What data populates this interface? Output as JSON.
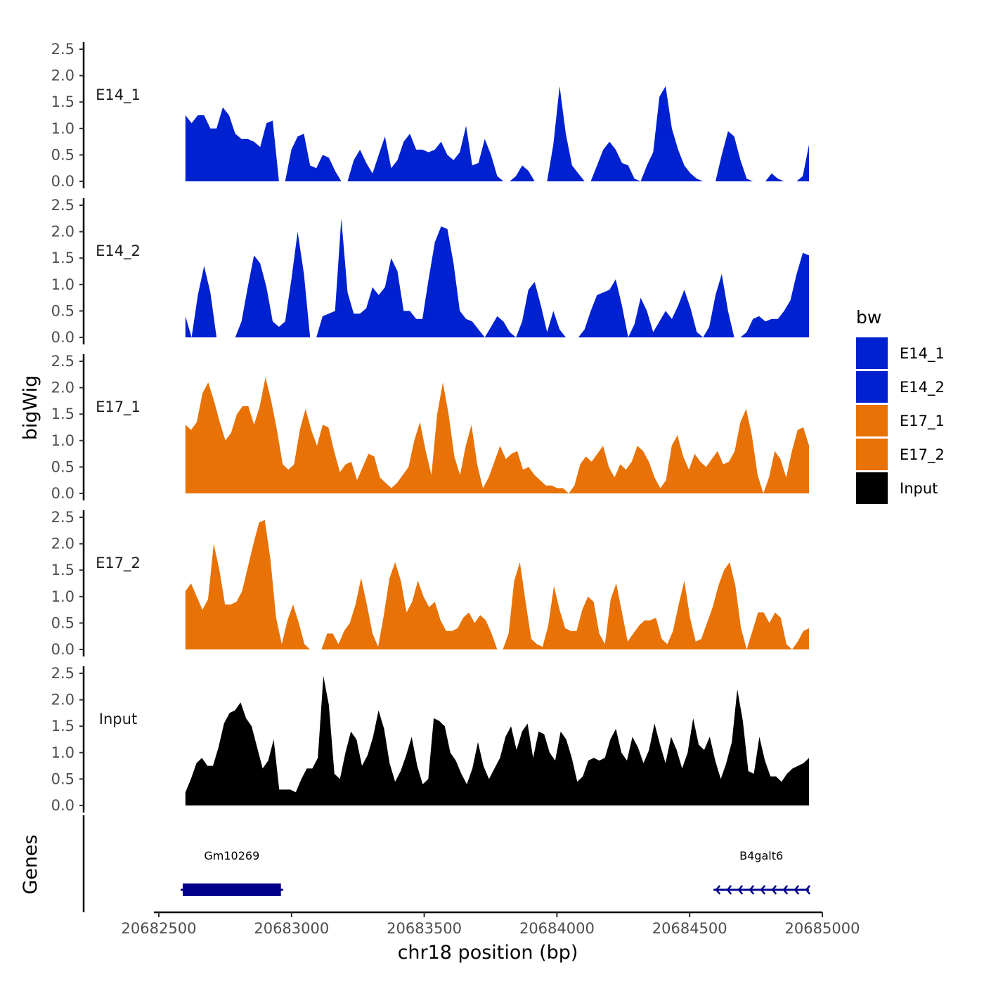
{
  "colors": {
    "E14": "#0021CF",
    "E17": "#E87206",
    "Input": "#000000",
    "gene": "#00008B"
  },
  "chart_data": {
    "type": "area",
    "ylabel": "bigWig",
    "xlabel": "chr18 position (bp)",
    "genes_label": "Genes",
    "ylim": [
      0,
      2.6
    ],
    "y_ticks": [
      "0.0",
      "0.5",
      "1.0",
      "1.5",
      "2.0",
      "2.5"
    ],
    "x_ticks": [
      "20682500",
      "20683000",
      "20683500",
      "20684000",
      "20684500",
      "20685000"
    ],
    "xlim": [
      20682490,
      20685080
    ],
    "data_range": [
      20682600,
      20684950
    ],
    "legend": {
      "title": "bw",
      "entries": [
        {
          "label": "E14_1",
          "color": "#0021CF"
        },
        {
          "label": "E14_2",
          "color": "#0021CF"
        },
        {
          "label": "E17_1",
          "color": "#E87206"
        },
        {
          "label": "E17_2",
          "color": "#E87206"
        },
        {
          "label": "Input",
          "color": "#000000"
        }
      ]
    },
    "series": [
      {
        "name": "E14_1",
        "color": "#0021CF",
        "values": [
          1.25,
          1.1,
          1.25,
          1.25,
          1.0,
          1.0,
          1.4,
          1.25,
          0.9,
          0.8,
          0.8,
          0.75,
          0.65,
          1.1,
          1.15,
          0,
          0,
          0.6,
          0.85,
          0.9,
          0.3,
          0.25,
          0.5,
          0.45,
          0.2,
          0,
          0,
          0.4,
          0.6,
          0.35,
          0.15,
          0.5,
          0.85,
          0.25,
          0.4,
          0.75,
          0.9,
          0.6,
          0.6,
          0.55,
          0.6,
          0.75,
          0.5,
          0.4,
          0.55,
          1.05,
          0.3,
          0.35,
          0.8,
          0.5,
          0.1,
          0,
          0,
          0.1,
          0.3,
          0.2,
          0,
          0,
          0,
          0.7,
          1.8,
          0.9,
          0.3,
          0.15,
          0,
          0,
          0.3,
          0.6,
          0.75,
          0.6,
          0.35,
          0.3,
          0.05,
          0,
          0.3,
          0.55,
          1.6,
          1.8,
          1.0,
          0.6,
          0.3,
          0.15,
          0.05,
          0,
          0,
          0,
          0.5,
          0.95,
          0.85,
          0.4,
          0.05,
          0,
          0,
          0,
          0.15,
          0.05,
          0,
          0,
          0,
          0.1,
          0.7
        ]
      },
      {
        "name": "E14_2",
        "color": "#0021CF",
        "values": [
          0.4,
          0,
          0.8,
          1.35,
          0.85,
          0,
          0,
          0,
          0,
          0.3,
          0.95,
          1.55,
          1.4,
          0.95,
          0.3,
          0.2,
          0.3,
          1.1,
          2.0,
          1.2,
          0,
          0,
          0.4,
          0.45,
          0.5,
          2.25,
          0.85,
          0.45,
          0.45,
          0.55,
          0.95,
          0.8,
          0.95,
          1.5,
          1.25,
          0.5,
          0.5,
          0.35,
          0.35,
          1.1,
          1.8,
          2.1,
          2.05,
          1.4,
          0.5,
          0.35,
          0.3,
          0.15,
          0,
          0.2,
          0.4,
          0.3,
          0.1,
          0,
          0.3,
          0.9,
          1.05,
          0.6,
          0.1,
          0.5,
          0.15,
          0,
          0,
          0,
          0.15,
          0.5,
          0.8,
          0.85,
          0.9,
          1.1,
          0.6,
          0,
          0.25,
          0.75,
          0.5,
          0.1,
          0.3,
          0.5,
          0.35,
          0.6,
          0.9,
          0.55,
          0.1,
          0,
          0.2,
          0.8,
          1.2,
          0.5,
          0,
          0,
          0.1,
          0.35,
          0.4,
          0.3,
          0.35,
          0.35,
          0.5,
          0.7,
          1.2,
          1.6,
          1.55
        ]
      },
      {
        "name": "E17_1",
        "color": "#E87206",
        "values": [
          1.3,
          1.2,
          1.35,
          1.9,
          2.1,
          1.75,
          1.35,
          1.0,
          1.15,
          1.5,
          1.65,
          1.65,
          1.3,
          1.65,
          2.2,
          1.75,
          1.2,
          0.55,
          0.45,
          0.55,
          1.2,
          1.6,
          1.2,
          0.9,
          1.3,
          1.25,
          0.8,
          0.4,
          0.55,
          0.6,
          0.25,
          0.5,
          0.75,
          0.7,
          0.3,
          0.2,
          0.1,
          0.2,
          0.35,
          0.5,
          1.0,
          1.35,
          0.8,
          0.35,
          1.5,
          2.1,
          1.5,
          0.7,
          0.35,
          0.9,
          1.3,
          0.55,
          0.1,
          0.3,
          0.6,
          0.9,
          0.65,
          0.75,
          0.8,
          0.45,
          0.5,
          0.35,
          0.25,
          0.15,
          0.15,
          0.1,
          0.1,
          0,
          0.15,
          0.55,
          0.7,
          0.6,
          0.75,
          0.9,
          0.5,
          0.3,
          0.55,
          0.45,
          0.6,
          0.9,
          0.8,
          0.6,
          0.3,
          0.1,
          0.25,
          0.9,
          1.1,
          0.7,
          0.45,
          0.75,
          0.6,
          0.5,
          0.65,
          0.8,
          0.55,
          0.6,
          0.8,
          1.35,
          1.6,
          1.1,
          0.35,
          0,
          0.3,
          0.8,
          0.65,
          0.3,
          0.8,
          1.2,
          1.25,
          0.9
        ]
      },
      {
        "name": "E17_2",
        "color": "#E87206",
        "values": [
          1.1,
          1.25,
          1.0,
          0.75,
          0.95,
          2.0,
          1.5,
          0.85,
          0.85,
          0.9,
          1.1,
          1.55,
          2.0,
          2.4,
          2.45,
          1.7,
          0.6,
          0.1,
          0.55,
          0.85,
          0.5,
          0.1,
          0,
          0,
          0,
          0.3,
          0.3,
          0.1,
          0.35,
          0.5,
          0.85,
          1.35,
          0.85,
          0.3,
          0.05,
          0.65,
          1.35,
          1.65,
          1.3,
          0.7,
          0.9,
          1.3,
          1.0,
          0.8,
          0.9,
          0.55,
          0.35,
          0.35,
          0.4,
          0.6,
          0.7,
          0.5,
          0.65,
          0.55,
          0.3,
          0,
          0,
          0.3,
          1.3,
          1.65,
          0.9,
          0.2,
          0.1,
          0.05,
          0.45,
          1.2,
          0.75,
          0.4,
          0.35,
          0.35,
          0.75,
          1.0,
          0.9,
          0.3,
          0.1,
          0.95,
          1.25,
          0.7,
          0.15,
          0.3,
          0.45,
          0.55,
          0.55,
          0.6,
          0.2,
          0.1,
          0.35,
          0.85,
          1.3,
          0.6,
          0.15,
          0.2,
          0.5,
          0.8,
          1.2,
          1.5,
          1.65,
          1.2,
          0.4,
          0,
          0.35,
          0.7,
          0.7,
          0.5,
          0.7,
          0.6,
          0.1,
          0,
          0.15,
          0.35,
          0.4
        ]
      },
      {
        "name": "Input",
        "color": "#000000",
        "values": [
          0.25,
          0.5,
          0.8,
          0.9,
          0.75,
          0.75,
          1.1,
          1.55,
          1.75,
          1.8,
          1.95,
          1.65,
          1.5,
          1.1,
          0.7,
          0.85,
          1.25,
          0.3,
          0.3,
          0.3,
          0.25,
          0.5,
          0.7,
          0.7,
          0.9,
          2.45,
          1.9,
          0.6,
          0.5,
          1.0,
          1.4,
          1.25,
          0.75,
          0.95,
          1.3,
          1.8,
          1.45,
          0.8,
          0.45,
          0.65,
          0.95,
          1.3,
          0.75,
          0.4,
          0.5,
          1.65,
          1.6,
          1.5,
          1.0,
          0.85,
          0.6,
          0.4,
          0.7,
          1.2,
          0.75,
          0.5,
          0.7,
          0.9,
          1.3,
          1.5,
          1.05,
          1.4,
          1.55,
          0.9,
          1.4,
          1.35,
          1.0,
          0.85,
          1.4,
          1.25,
          0.9,
          0.45,
          0.55,
          0.85,
          0.9,
          0.85,
          0.9,
          1.25,
          1.45,
          1.0,
          0.85,
          1.3,
          1.1,
          0.8,
          1.05,
          1.55,
          1.15,
          0.8,
          1.3,
          1.05,
          0.7,
          1.0,
          1.65,
          1.15,
          1.05,
          1.3,
          0.85,
          0.5,
          0.8,
          1.2,
          2.2,
          1.6,
          0.65,
          0.6,
          1.3,
          0.85,
          0.55,
          0.55,
          0.45,
          0.6,
          0.7,
          0.75,
          0.8,
          0.9
        ]
      }
    ],
    "genes": [
      {
        "name": "Gm10269",
        "start": 20682590,
        "end": 20682960,
        "strand": "+",
        "style": "block"
      },
      {
        "name": "B4galt6",
        "start": 20684590,
        "end": 20684950,
        "strand": "-",
        "style": "arrows"
      }
    ]
  }
}
